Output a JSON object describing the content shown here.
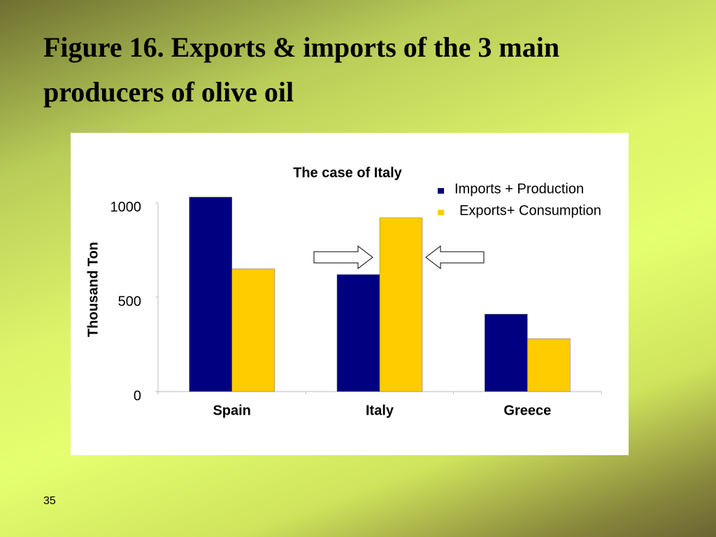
{
  "slide_title": "Figure 16. Exports & imports of the 3 main producers of olive oil",
  "page_number": "35",
  "chart_data": {
    "type": "bar",
    "title": "The case of Italy",
    "y_label": "Thousand Ton",
    "categories": [
      "Spain",
      "Italy",
      "Greece"
    ],
    "series": [
      {
        "name": "Imports + Production",
        "color": "#000080",
        "values": [
          1030,
          620,
          410
        ]
      },
      {
        "name": "Exports+ Consumption",
        "color": "#ffcc00",
        "values": [
          650,
          920,
          280
        ]
      }
    ],
    "ylim": [
      0,
      1000
    ],
    "yticks": [
      0,
      500,
      1000
    ],
    "grid": false,
    "legend": "top-right"
  }
}
